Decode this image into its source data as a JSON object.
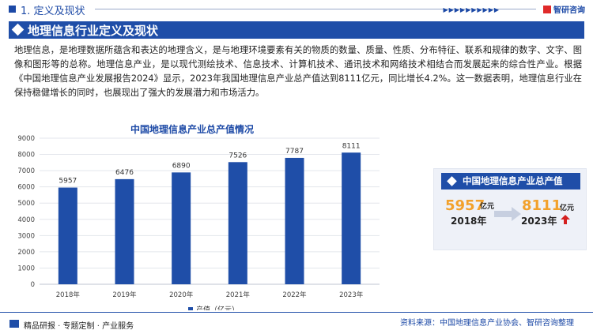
{
  "header": {
    "section": "1. 定义及现状",
    "logo": "智研咨询"
  },
  "banner": {
    "title": "地理信息行业定义及现状"
  },
  "paragraph": "地理信息，是地理数据所蕴含和表达的地理含义，是与地理环境要素有关的物质的数量、质量、性质、分布特征、联系和规律的数字、文字、图像和图形等的总称。地理信息产业，是以现代测绘技术、信息技术、计算机技术、通讯技术和网络技术相结合而发展起来的综合性产业。根据《中国地理信息产业发展报告2024》显示，2023年我国地理信息产业总产值达到8111亿元，同比增长4.2%。这一数据表明，地理信息行业在保持稳健增长的同时，也展现出了强大的发展潜力和市场活力。",
  "chart_data": {
    "type": "bar",
    "title": "中国地理信息产业总产值情况",
    "categories": [
      "2018年",
      "2019年",
      "2020年",
      "2021年",
      "2022年",
      "2023年"
    ],
    "series": [
      {
        "name": "产值（亿元）",
        "values": [
          5957,
          6476,
          6890,
          7526,
          7787,
          8111
        ]
      }
    ],
    "yticks": [
      "0",
      "1000",
      "2000",
      "3000",
      "4000",
      "5000",
      "6000",
      "7000",
      "8000",
      "9000"
    ],
    "ylim": [
      0,
      9000
    ],
    "bar_color": "#1f4ea8",
    "grid": true,
    "legend_position": "bottom"
  },
  "panel": {
    "title": "中国地理信息产业总产值",
    "from_value": "5957",
    "from_unit": "亿元",
    "from_year": "2018年",
    "to_value": "8111",
    "to_unit": "亿元",
    "to_year": "2023年"
  },
  "footer": {
    "left": "精品研报 · 专题定制 · 产业服务",
    "right": "资料来源：中国地理信息产业协会、智研咨询整理"
  }
}
